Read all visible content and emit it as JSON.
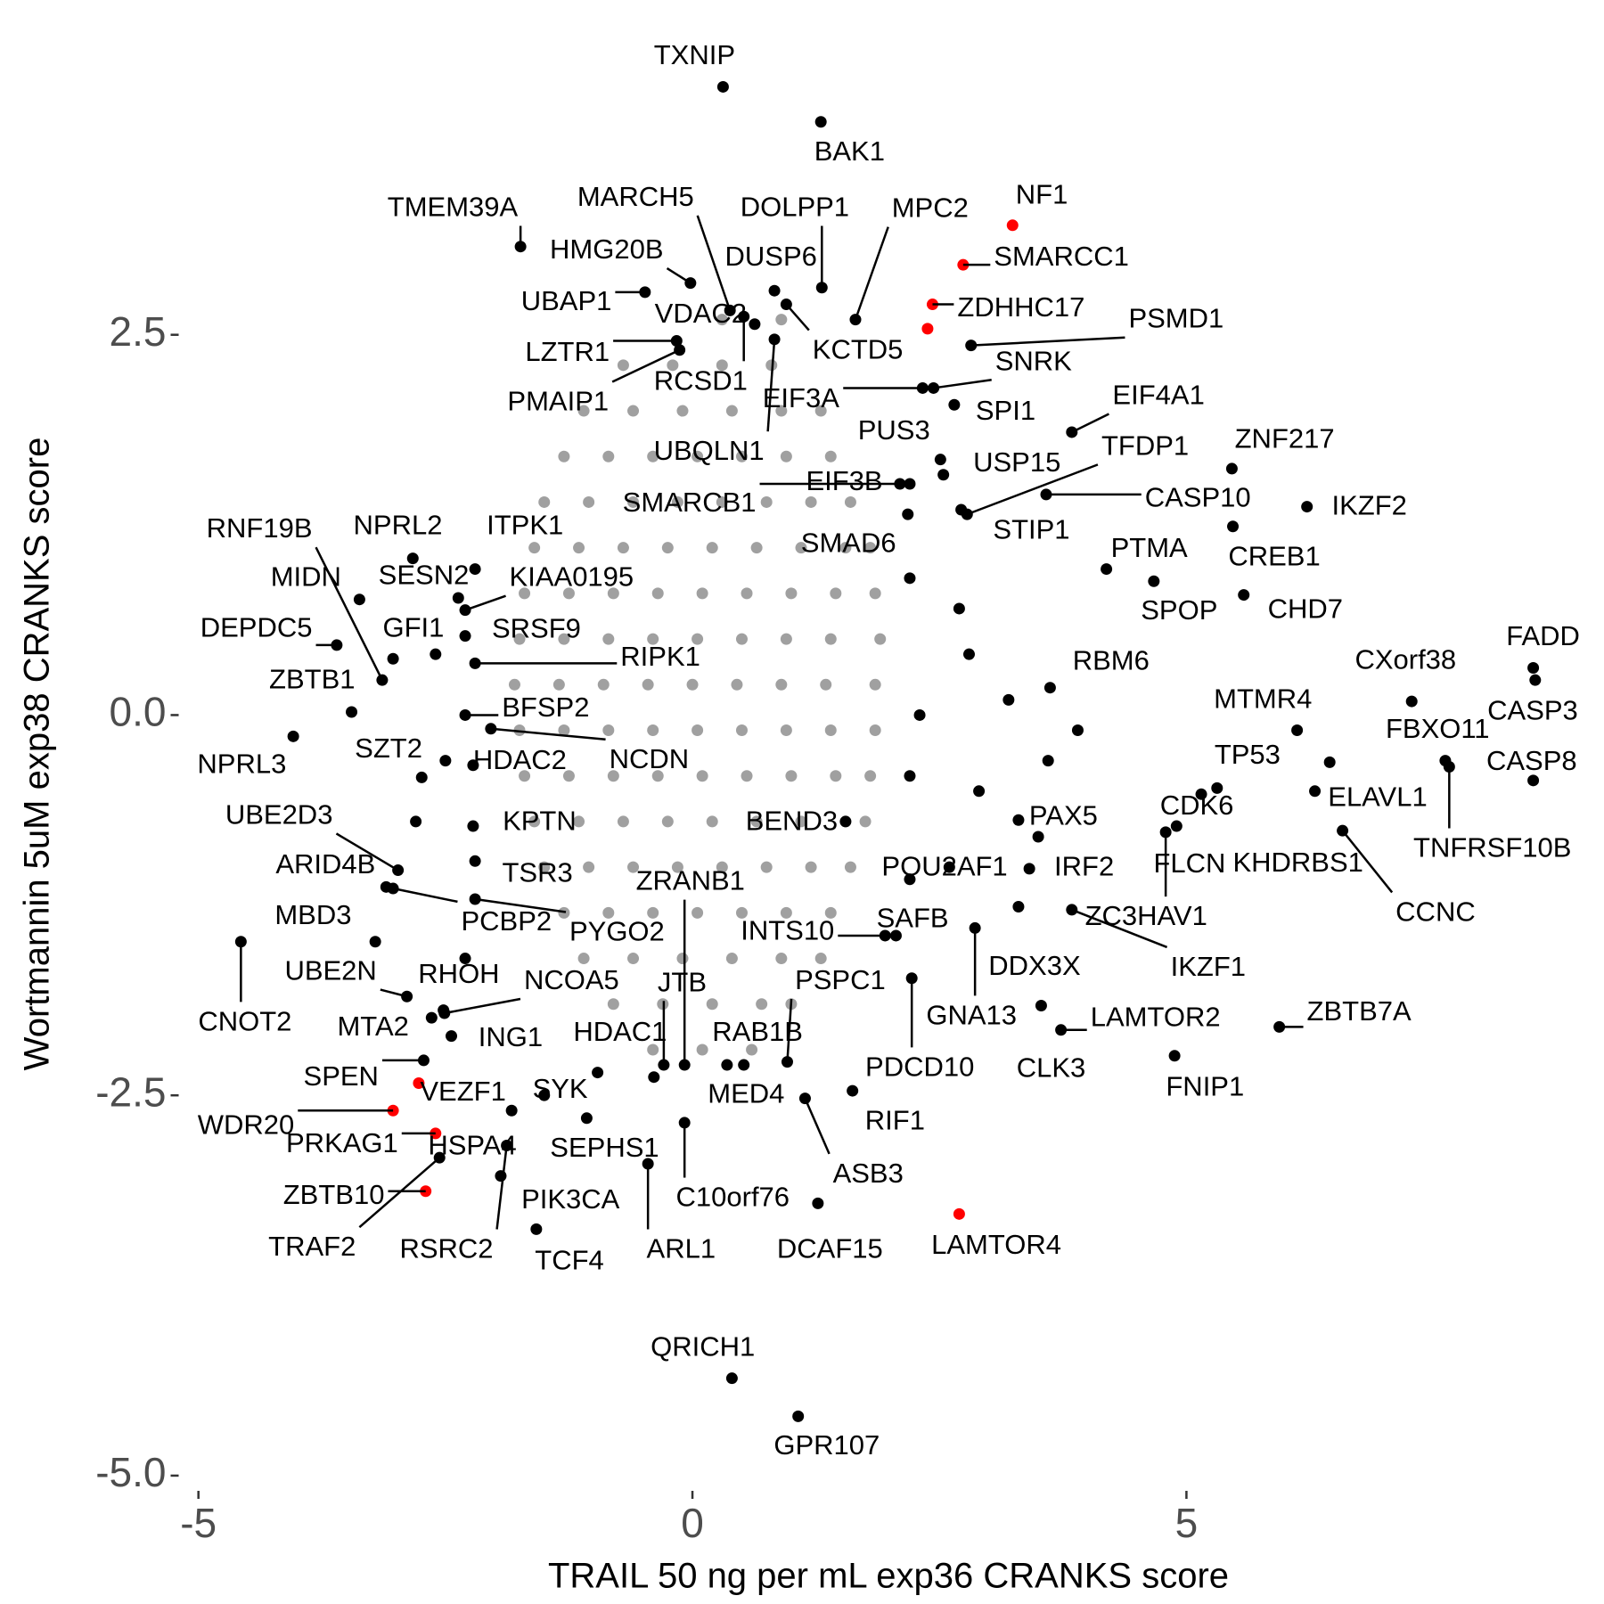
{
  "chart_data": {
    "type": "scatter",
    "x_label": "TRAIL 50 ng per mL exp36 CRANKS score",
    "y_label": "Wortmannin 5uM exp38 CRANKS score",
    "xlim": [
      -5.2,
      9.1
    ],
    "ylim": [
      -5.1,
      4.5
    ],
    "xticks": [
      -5,
      0,
      5
    ],
    "yticks": [
      {
        "value": -5,
        "label": "-5.0"
      },
      -2.5,
      {
        "value": 0,
        "label": "0.0"
      },
      2.5
    ],
    "grid": false,
    "series": [
      {
        "color": "#a0a0a0",
        "x": [
          0.3,
          0.9,
          -0.7,
          -0.2,
          0.3,
          0.8,
          -1.1,
          -0.6,
          -0.1,
          0.4,
          0.9,
          1.3,
          -1.3,
          -0.85,
          -0.4,
          0.05,
          0.5,
          0.95,
          1.4,
          -1.5,
          -1.05,
          -0.6,
          -0.15,
          0.3,
          0.75,
          1.2,
          1.6,
          -1.6,
          -1.15,
          -0.7,
          -0.25,
          0.2,
          0.65,
          1.1,
          1.55,
          1.8,
          -1.7,
          -1.25,
          -0.8,
          -0.35,
          0.1,
          0.55,
          1.0,
          1.45,
          1.85,
          -1.75,
          -1.3,
          -0.85,
          -0.4,
          0.05,
          0.5,
          0.95,
          1.4,
          1.9,
          -1.8,
          -1.35,
          -0.9,
          -0.45,
          0,
          0.45,
          0.9,
          1.35,
          1.85,
          -1.75,
          -1.3,
          -0.85,
          -0.4,
          0.05,
          0.5,
          0.95,
          1.4,
          1.85,
          -1.7,
          -1.25,
          -0.8,
          -0.35,
          0.1,
          0.55,
          1.0,
          1.45,
          1.8,
          -1.6,
          -1.15,
          -0.7,
          -0.25,
          0.2,
          0.65,
          1.1,
          1.55,
          1.75,
          -1.5,
          -1.05,
          -0.6,
          -0.15,
          0.3,
          0.75,
          1.2,
          1.6,
          -1.3,
          -0.85,
          -0.4,
          0.05,
          0.5,
          0.95,
          1.4,
          -1.1,
          -0.6,
          -0.1,
          0.4,
          0.9,
          1.3,
          -0.8,
          -0.3,
          0.2,
          0.7,
          1.0,
          -0.4,
          0.1,
          0.6
        ],
        "values": [
          2.6,
          2.6,
          2.3,
          2.3,
          2.3,
          2.3,
          2.0,
          2.0,
          2.0,
          2.0,
          2.0,
          2.0,
          1.7,
          1.7,
          1.7,
          1.7,
          1.7,
          1.7,
          1.7,
          1.4,
          1.4,
          1.4,
          1.4,
          1.4,
          1.4,
          1.4,
          1.4,
          1.1,
          1.1,
          1.1,
          1.1,
          1.1,
          1.1,
          1.1,
          1.1,
          1.1,
          0.8,
          0.8,
          0.8,
          0.8,
          0.8,
          0.8,
          0.8,
          0.8,
          0.8,
          0.5,
          0.5,
          0.5,
          0.5,
          0.5,
          0.5,
          0.5,
          0.5,
          0.5,
          0.2,
          0.2,
          0.2,
          0.2,
          0.2,
          0.2,
          0.2,
          0.2,
          0.2,
          -0.1,
          -0.1,
          -0.1,
          -0.1,
          -0.1,
          -0.1,
          -0.1,
          -0.1,
          -0.1,
          -0.4,
          -0.4,
          -0.4,
          -0.4,
          -0.4,
          -0.4,
          -0.4,
          -0.4,
          -0.4,
          -0.7,
          -0.7,
          -0.7,
          -0.7,
          -0.7,
          -0.7,
          -0.7,
          -0.7,
          -0.7,
          -1.0,
          -1.0,
          -1.0,
          -1.0,
          -1.0,
          -1.0,
          -1.0,
          -1.0,
          -1.3,
          -1.3,
          -1.3,
          -1.3,
          -1.3,
          -1.3,
          -1.3,
          -1.6,
          -1.6,
          -1.6,
          -1.6,
          -1.6,
          -1.6,
          -1.9,
          -1.9,
          -1.9,
          -1.9,
          -1.9,
          -2.2,
          -2.2,
          -2.2
        ]
      },
      {
        "color": "#000000",
        "labels": [
          "TXNIP",
          "BAK1",
          "TMEM39A",
          "MARCH5",
          "DOLPP1",
          "MPC2",
          "HMG20B",
          "UBAP1",
          "DUSP6",
          "VDAC2",
          "LZTR1",
          "RCSD1",
          "PMAIP1",
          "UBQLN1",
          "KCTD5",
          "EIF3A",
          "SNRK",
          "PSMD1",
          "SPI1",
          "PUS3",
          "EIF4A1",
          "TFDP1",
          "USP15",
          "ZNF217",
          "EIF3B",
          "SMARCB1",
          "CASP10",
          "IKZF2",
          "STIP1",
          "SMAD6",
          "PTMA",
          "CREB1",
          "SPOP",
          "CHD7",
          "FADD",
          "CXorf38",
          "CASP3",
          "MTMR4",
          "FBXO11",
          "CASP8",
          "TNFRSF10B",
          "TP53",
          "ELAVL1",
          "CDK6",
          "KHDRBS1",
          "CCNC",
          "FLCN",
          "ZC3HAV1",
          "IKZF1",
          "RBM6",
          "PAX5",
          "IRF2",
          "POU2AF1",
          "BEND3",
          "SAFB",
          "INTS10",
          "DDX3X",
          "GNA13",
          "LAMTOR2",
          "ZBTB7A",
          "CLK3",
          "FNIP1",
          "PDCD10",
          "PSPC1",
          "RAB1B",
          "RIF1",
          "MED4",
          "ASB3",
          "DCAF15",
          "ZRANB1",
          "JTB",
          "HDAC1",
          "C10orf76",
          "ARL1",
          "SYK",
          "SEPHS1",
          "TCF4",
          "PIK3CA",
          "RSRC2",
          "TRAF2",
          "HSPA4",
          "SPEN",
          "MTA2",
          "ING1",
          "NCOA5",
          "RHOH",
          "UBE2N",
          "CNOT2",
          "MBD3",
          "PCBP2",
          "PYGO2",
          "TSR3",
          "ARID4B",
          "UBE2D3",
          "KPTN",
          "HDAC2",
          "NCDN",
          "BFSP2",
          "SZT2",
          "NPRL3",
          "ZBTB1",
          "DEPDC5",
          "GFI1",
          "MIDN",
          "RNF19B",
          "NPRL2",
          "ITPK1",
          "SESN2",
          "KIAA0195",
          "SRSF9",
          "RIPK1",
          "QRICH1",
          "GPR107",
          null,
          null,
          null,
          null,
          null,
          null,
          null,
          null,
          null,
          null,
          null,
          null,
          null,
          null,
          null,
          null
        ],
        "x": [
          0.31,
          1.3,
          -1.74,
          0.38,
          1.31,
          1.65,
          -0.02,
          -0.48,
          0.83,
          0.63,
          -0.16,
          0.52,
          -0.13,
          0.83,
          0.95,
          2.33,
          2.44,
          2.82,
          2.65,
          2.51,
          3.84,
          2.78,
          2.54,
          5.46,
          2.2,
          2.1,
          3.58,
          6.22,
          2.72,
          2.18,
          4.19,
          5.47,
          4.67,
          5.58,
          8.51,
          7.28,
          8.53,
          6.12,
          7.62,
          8.51,
          7.66,
          5.31,
          6.45,
          5.15,
          6.3,
          6.58,
          4.9,
          4.79,
          3.84,
          3.62,
          3.3,
          3.41,
          2.2,
          1.55,
          2.06,
          1.95,
          3.3,
          2.86,
          3.73,
          5.94,
          3.53,
          4.88,
          2.22,
          0.96,
          0.52,
          1.62,
          0.35,
          1.14,
          1.27,
          -0.08,
          -0.29,
          -0.39,
          -0.08,
          -0.45,
          -0.96,
          -1.07,
          -1.58,
          -1.94,
          -1.88,
          -2.56,
          -1.83,
          -2.72,
          -2.64,
          -2.44,
          -2.51,
          -2.52,
          -2.89,
          -4.57,
          -3.21,
          -3.03,
          -2.2,
          -2.2,
          -3.1,
          -2.98,
          -2.22,
          -2.22,
          -2.04,
          -2.3,
          -2.74,
          -4.04,
          -3.45,
          -3.6,
          -3.03,
          -3.37,
          -3.14,
          -2.83,
          -2.2,
          -2.37,
          -2.3,
          -2.3,
          -2.2,
          0.4,
          1.07,
          2.7,
          3.2,
          2.9,
          3.6,
          2.2,
          2.8,
          3.5,
          -2.8,
          -2.6,
          -2.5,
          2.2,
          2.3,
          3.9,
          2.6,
          -2.3,
          -1.5
        ],
        "values": [
          4.13,
          3.9,
          3.08,
          2.66,
          2.81,
          2.6,
          2.84,
          2.78,
          2.79,
          2.57,
          2.46,
          2.62,
          2.4,
          2.47,
          2.7,
          2.15,
          2.15,
          2.43,
          2.04,
          1.68,
          1.86,
          1.32,
          1.58,
          1.62,
          1.52,
          1.52,
          1.45,
          1.37,
          1.35,
          1.32,
          0.96,
          1.24,
          0.88,
          0.79,
          0.31,
          0.09,
          0.23,
          -0.1,
          -0.3,
          -0.43,
          -0.34,
          -0.48,
          -0.31,
          -0.52,
          -0.5,
          -0.76,
          -0.73,
          -0.77,
          -1.28,
          0.18,
          -0.69,
          -1.01,
          -1.08,
          -0.7,
          -1.45,
          -1.45,
          -1.26,
          -1.4,
          -2.07,
          -2.05,
          -1.91,
          -2.24,
          -1.73,
          -2.28,
          -2.3,
          -2.47,
          -2.3,
          -2.52,
          -3.21,
          -2.3,
          -2.3,
          -2.38,
          -2.68,
          -2.95,
          -2.35,
          -2.65,
          -3.38,
          -3.03,
          -2.83,
          -2.91,
          -2.6,
          -2.27,
          -1.99,
          -2.11,
          -1.96,
          -1.94,
          -1.85,
          -1.49,
          -1.49,
          -1.14,
          -1.21,
          -0.96,
          -1.13,
          -1.02,
          -0.73,
          -0.33,
          -0.09,
          0.0,
          -0.41,
          -0.14,
          0.02,
          0.46,
          0.37,
          0.76,
          0.23,
          1.03,
          0.96,
          0.77,
          0.69,
          0.52,
          0.34,
          -4.36,
          -4.61,
          0.7,
          0.1,
          -0.5,
          -0.3,
          0.9,
          0.4,
          -0.8,
          -0.7,
          0.4,
          -0.3,
          -0.4,
          0.0,
          -0.1,
          -1.0,
          -1.6,
          -2.5
        ]
      },
      {
        "color": "#ff0000",
        "labels": [
          "NF1",
          "SMARCC1",
          "ZDHHC17",
          null,
          "LAMTOR4",
          "VEZF1",
          "WDR20",
          "PRKAG1",
          "ZBTB10"
        ],
        "x": [
          3.24,
          2.74,
          2.43,
          2.38,
          2.7,
          -2.77,
          -3.03,
          -2.6,
          -2.7
        ],
        "values": [
          3.22,
          2.96,
          2.7,
          2.54,
          -3.28,
          -2.42,
          -2.6,
          -2.75,
          -3.13
        ]
      }
    ]
  }
}
